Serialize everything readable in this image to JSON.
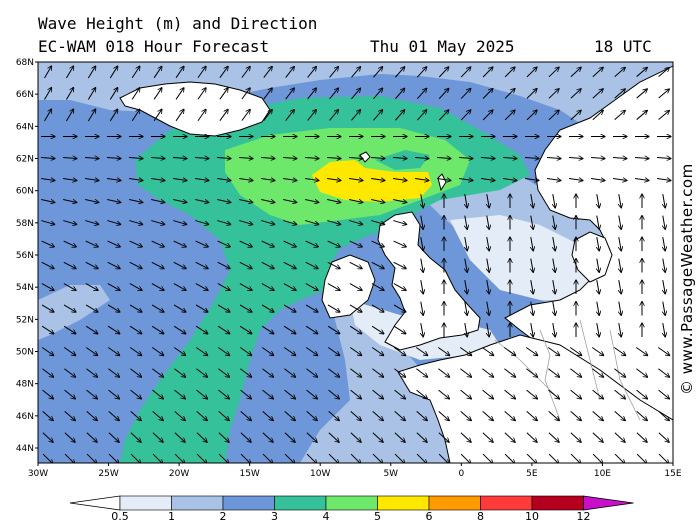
{
  "header": {
    "title": "Wave Height (m) and Direction",
    "model": "EC-WAM 018 Hour Forecast",
    "date": "Thu 01 May 2025",
    "time": "18 UTC"
  },
  "credit": "© www.PassageWeather.com",
  "map": {
    "lat_labels": [
      "68N",
      "66N",
      "64N",
      "62N",
      "60N",
      "58N",
      "56N",
      "54N",
      "52N",
      "50N",
      "48N",
      "46N",
      "44N"
    ],
    "lon_labels": [
      "30W",
      "25W",
      "20W",
      "15W",
      "10W",
      "5W",
      "0",
      "5E",
      "10E",
      "15E"
    ],
    "lat_range": [
      43,
      68
    ],
    "lon_range": [
      -30,
      15
    ],
    "vector_field": "wave-direction-arrows"
  },
  "colorbar": {
    "labels": [
      "0.5",
      "1",
      "2",
      "3",
      "4",
      "5",
      "6",
      "8",
      "10",
      "12"
    ],
    "colors": [
      "#e4ecf7",
      "#a9c2e6",
      "#6d97d8",
      "#35c29a",
      "#6ee86a",
      "#ffe800",
      "#ff9a00",
      "#ff3a3a",
      "#b4001e",
      "#c810c8"
    ],
    "underflow_color": "#ffffff"
  },
  "colors": {
    "land": "#ffffff",
    "coast": "#000000",
    "border": "#a0a0a0"
  }
}
